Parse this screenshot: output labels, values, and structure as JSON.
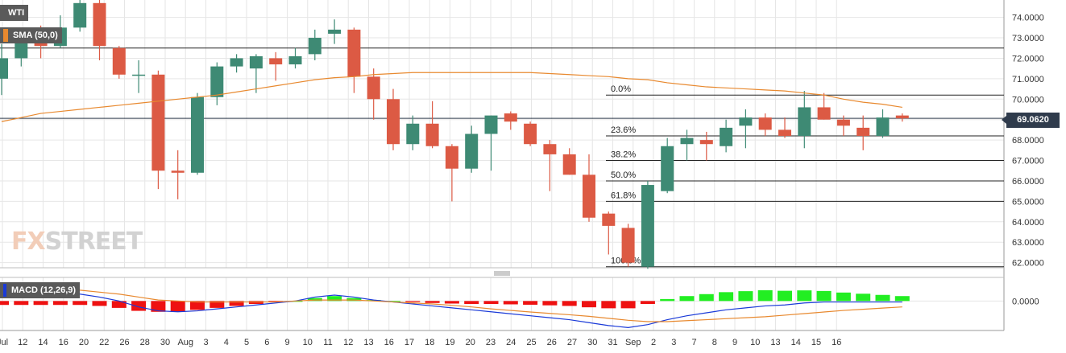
{
  "instrument_label": "WTI",
  "sma_label": "SMA (50,0)",
  "macd_label": "MACD (12,26,9)",
  "watermark": {
    "part1": "FX",
    "part2": "STREET"
  },
  "current_price_label": "69.0620",
  "colors": {
    "bull": "#3e8a74",
    "bear": "#dc5a44",
    "sma": "#e8892f",
    "macd": "#1a3ad8",
    "signal": "#e8892f",
    "hist_pos": "#22ee22",
    "hist_neg": "#ee1111",
    "grid": "#e6e6e6"
  },
  "chart_data": [
    {
      "type": "candlestick",
      "title": "",
      "ylim": [
        61.75,
        74.85
      ],
      "y_ticks": [
        "62.0000",
        "63.0000",
        "64.0000",
        "65.0000",
        "66.0000",
        "67.0000",
        "68.0000",
        "69.0000",
        "70.0000",
        "71.0000",
        "72.0000",
        "73.0000",
        "74.0000"
      ],
      "x_labels": [
        "Jul",
        "12",
        "14",
        "16",
        "20",
        "22",
        "26",
        "28",
        "30",
        "Aug",
        "3",
        "4",
        "5",
        "6",
        "9",
        "10",
        "11",
        "12",
        "13",
        "16",
        "17",
        "18",
        "19",
        "20",
        "23",
        "24",
        "25",
        "26",
        "27",
        "30",
        "31",
        "Sep",
        "2",
        "3",
        "7",
        "8",
        "9",
        "10",
        "13",
        "14",
        "15",
        "16"
      ],
      "candles": [
        {
          "o": 71.0,
          "h": 72.7,
          "l": 70.2,
          "c": 72.0
        },
        {
          "o": 72.0,
          "h": 73.4,
          "l": 71.6,
          "c": 73.2
        },
        {
          "o": 73.3,
          "h": 73.6,
          "l": 72.0,
          "c": 72.6
        },
        {
          "o": 72.6,
          "h": 74.1,
          "l": 72.5,
          "c": 73.5
        },
        {
          "o": 73.5,
          "h": 74.9,
          "l": 73.3,
          "c": 74.7
        },
        {
          "o": 74.7,
          "h": 74.9,
          "l": 71.9,
          "c": 72.6
        },
        {
          "o": 72.5,
          "h": 72.6,
          "l": 71.0,
          "c": 71.2
        },
        {
          "o": 71.2,
          "h": 71.9,
          "l": 70.3,
          "c": 71.2
        },
        {
          "o": 71.2,
          "h": 71.4,
          "l": 65.6,
          "c": 66.5
        },
        {
          "o": 66.5,
          "h": 67.5,
          "l": 65.1,
          "c": 66.4
        },
        {
          "o": 66.4,
          "h": 70.3,
          "l": 66.3,
          "c": 70.1
        },
        {
          "o": 70.1,
          "h": 71.8,
          "l": 69.7,
          "c": 71.6
        },
        {
          "o": 71.6,
          "h": 72.2,
          "l": 71.3,
          "c": 72.0
        },
        {
          "o": 71.5,
          "h": 72.2,
          "l": 70.3,
          "c": 72.1
        },
        {
          "o": 72.0,
          "h": 72.3,
          "l": 70.9,
          "c": 71.7
        },
        {
          "o": 71.7,
          "h": 72.5,
          "l": 71.5,
          "c": 72.1
        },
        {
          "o": 72.2,
          "h": 73.4,
          "l": 71.9,
          "c": 73.0
        },
        {
          "o": 73.2,
          "h": 73.9,
          "l": 72.7,
          "c": 73.4
        },
        {
          "o": 73.4,
          "h": 73.5,
          "l": 70.3,
          "c": 71.1
        },
        {
          "o": 71.1,
          "h": 71.5,
          "l": 69.0,
          "c": 70.0
        },
        {
          "o": 70.0,
          "h": 70.5,
          "l": 67.5,
          "c": 67.8
        },
        {
          "o": 67.8,
          "h": 69.2,
          "l": 67.5,
          "c": 68.8
        },
        {
          "o": 68.8,
          "h": 69.9,
          "l": 67.6,
          "c": 67.7
        },
        {
          "o": 67.7,
          "h": 67.8,
          "l": 65.0,
          "c": 66.6
        },
        {
          "o": 66.6,
          "h": 68.7,
          "l": 66.4,
          "c": 68.3
        },
        {
          "o": 68.3,
          "h": 69.2,
          "l": 66.5,
          "c": 69.2
        },
        {
          "o": 69.3,
          "h": 69.4,
          "l": 68.5,
          "c": 68.9
        },
        {
          "o": 68.8,
          "h": 68.9,
          "l": 67.7,
          "c": 67.8
        },
        {
          "o": 67.8,
          "h": 68.0,
          "l": 65.5,
          "c": 67.3
        },
        {
          "o": 67.3,
          "h": 67.6,
          "l": 66.3,
          "c": 66.3
        },
        {
          "o": 66.3,
          "h": 67.3,
          "l": 64.0,
          "c": 64.2
        },
        {
          "o": 64.4,
          "h": 64.5,
          "l": 62.4,
          "c": 63.8
        },
        {
          "o": 63.7,
          "h": 63.9,
          "l": 61.8,
          "c": 62.0
        },
        {
          "o": 61.8,
          "h": 66.0,
          "l": 61.7,
          "c": 65.8
        },
        {
          "o": 65.5,
          "h": 68.1,
          "l": 65.4,
          "c": 67.7
        },
        {
          "o": 67.8,
          "h": 68.5,
          "l": 67.0,
          "c": 68.1
        },
        {
          "o": 68.0,
          "h": 68.4,
          "l": 67.0,
          "c": 67.8
        },
        {
          "o": 67.7,
          "h": 69.0,
          "l": 67.4,
          "c": 68.6
        },
        {
          "o": 68.7,
          "h": 69.5,
          "l": 67.6,
          "c": 69.1
        },
        {
          "o": 69.1,
          "h": 69.3,
          "l": 68.2,
          "c": 68.5
        },
        {
          "o": 68.5,
          "h": 69.1,
          "l": 68.1,
          "c": 68.2
        },
        {
          "o": 68.2,
          "h": 70.4,
          "l": 67.6,
          "c": 69.6
        },
        {
          "o": 69.6,
          "h": 70.3,
          "l": 69.0,
          "c": 69.0
        },
        {
          "o": 69.0,
          "h": 69.2,
          "l": 68.2,
          "c": 68.7
        },
        {
          "o": 68.6,
          "h": 69.2,
          "l": 67.5,
          "c": 68.2
        },
        {
          "o": 68.2,
          "h": 69.5,
          "l": 68.1,
          "c": 69.1
        },
        {
          "o": 69.2,
          "h": 69.3,
          "l": 68.9,
          "c": 69.06
        }
      ],
      "sma_50": [
        68.9,
        69.1,
        69.3,
        69.4,
        69.5,
        69.6,
        69.7,
        69.8,
        69.9,
        70.0,
        70.1,
        70.2,
        70.35,
        70.5,
        70.65,
        70.8,
        70.95,
        71.05,
        71.1,
        71.2,
        71.25,
        71.3,
        71.3,
        71.3,
        71.3,
        71.3,
        71.3,
        71.3,
        71.25,
        71.2,
        71.15,
        71.1,
        71.0,
        70.95,
        70.8,
        70.7,
        70.6,
        70.55,
        70.5,
        70.45,
        70.4,
        70.3,
        70.2,
        70.0,
        69.85,
        69.75,
        69.6
      ],
      "current_price": 69.062,
      "fibonacci": {
        "high": 70.2,
        "low": 61.8,
        "levels": [
          {
            "label": "0.0%",
            "value": 70.2
          },
          {
            "label": "23.6%",
            "value": 68.2
          },
          {
            "label": "38.2%",
            "value": 67.0
          },
          {
            "label": "50.0%",
            "value": 66.0
          },
          {
            "label": "61.8%",
            "value": 65.0
          },
          {
            "label": "100.0%",
            "value": 61.8
          }
        ]
      },
      "horizontal_line": 72.5
    },
    {
      "type": "macd",
      "params": "12,26,9",
      "y_ticks": [
        "0.0000"
      ],
      "ylim": [
        -1.5,
        1.2
      ],
      "macd": [
        0.6,
        0.55,
        0.5,
        0.42,
        0.35,
        0.2,
        0.0,
        -0.3,
        -0.5,
        -0.55,
        -0.5,
        -0.4,
        -0.3,
        -0.2,
        -0.1,
        0.0,
        0.2,
        0.3,
        0.2,
        0.05,
        -0.05,
        -0.15,
        -0.25,
        -0.35,
        -0.45,
        -0.55,
        -0.65,
        -0.75,
        -0.85,
        -0.95,
        -1.1,
        -1.25,
        -1.35,
        -1.2,
        -0.95,
        -0.75,
        -0.6,
        -0.45,
        -0.35,
        -0.25,
        -0.2,
        -0.1,
        -0.05,
        -0.05,
        -0.05,
        -0.05,
        -0.05
      ],
      "signal": [
        0.8,
        0.75,
        0.7,
        0.62,
        0.55,
        0.45,
        0.35,
        0.2,
        0.05,
        0.0,
        -0.05,
        -0.05,
        -0.05,
        -0.05,
        -0.05,
        0.0,
        0.05,
        0.05,
        0.05,
        0.0,
        -0.05,
        -0.1,
        -0.15,
        -0.22,
        -0.3,
        -0.4,
        -0.48,
        -0.56,
        -0.63,
        -0.7,
        -0.78,
        -0.88,
        -0.98,
        -1.05,
        -1.05,
        -1.0,
        -0.95,
        -0.9,
        -0.85,
        -0.8,
        -0.72,
        -0.64,
        -0.56,
        -0.48,
        -0.42,
        -0.36,
        -0.3
      ],
      "histogram": [
        -0.2,
        -0.2,
        -0.2,
        -0.2,
        -0.2,
        -0.25,
        -0.35,
        -0.5,
        -0.55,
        -0.55,
        -0.45,
        -0.35,
        -0.25,
        -0.15,
        -0.05,
        0.0,
        0.15,
        0.25,
        0.15,
        0.05,
        0.0,
        -0.05,
        -0.1,
        -0.13,
        -0.15,
        -0.15,
        -0.17,
        -0.19,
        -0.22,
        -0.25,
        -0.32,
        -0.37,
        -0.37,
        -0.15,
        0.1,
        0.25,
        0.35,
        0.45,
        0.5,
        0.55,
        0.52,
        0.54,
        0.51,
        0.43,
        0.37,
        0.31,
        0.25
      ]
    }
  ]
}
